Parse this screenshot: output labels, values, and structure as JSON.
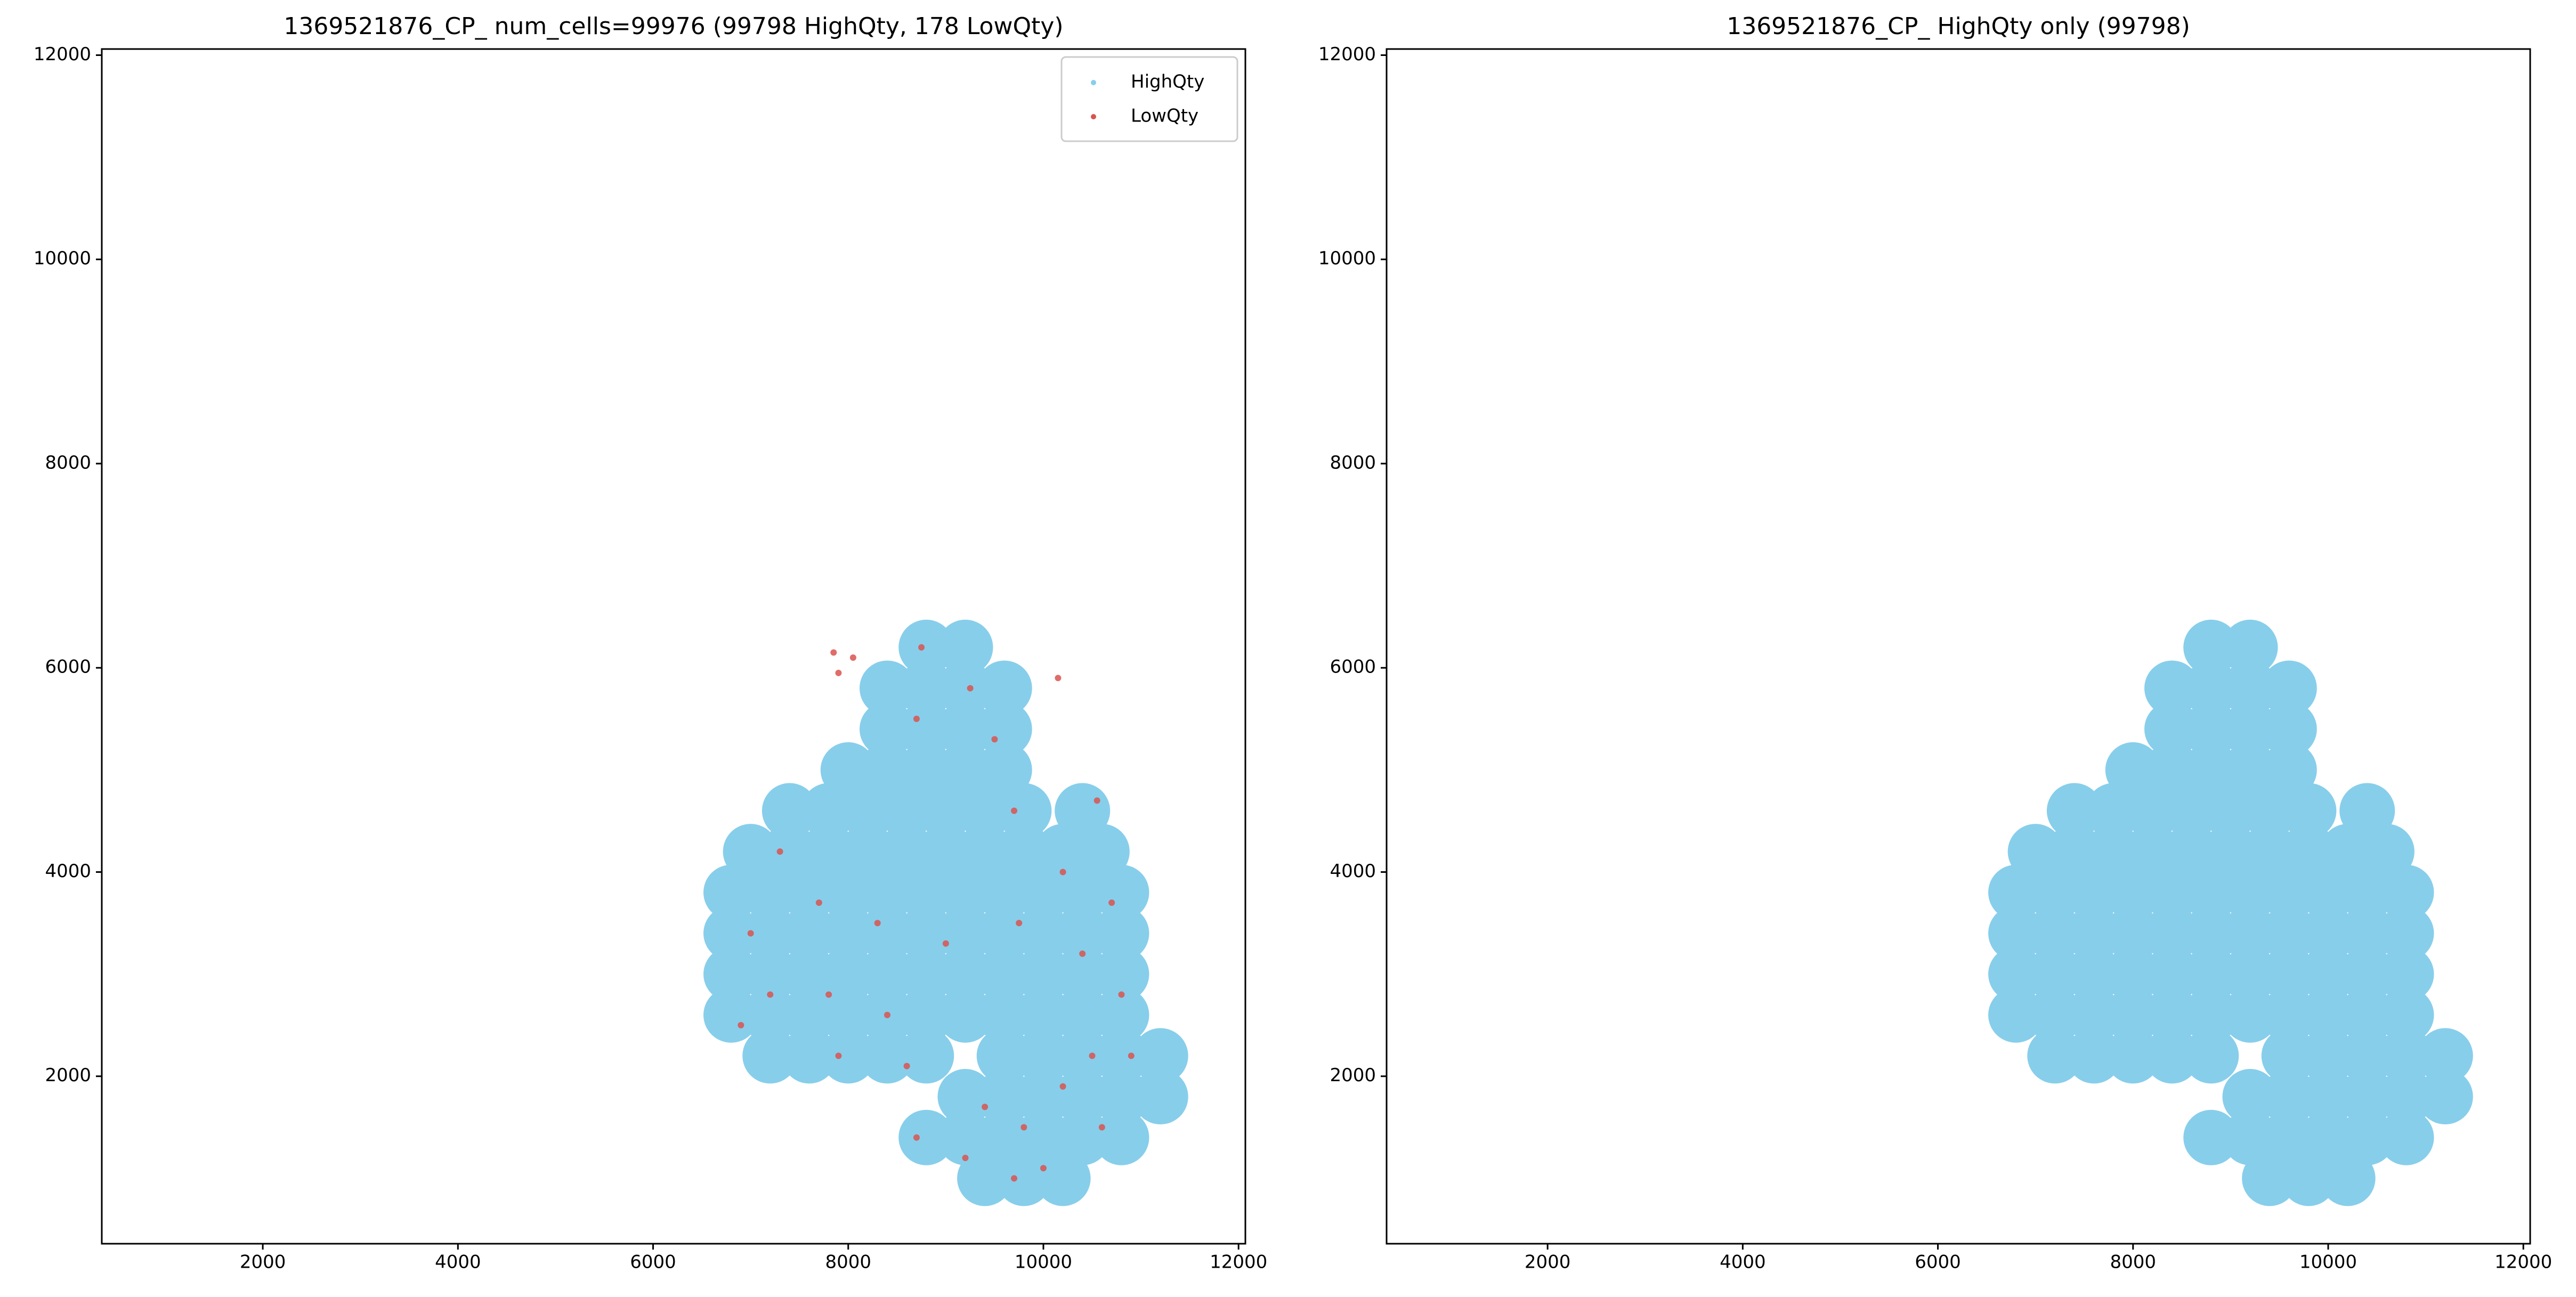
{
  "chart_data": [
    {
      "type": "scatter",
      "title": "1369521876_CP_ num_cells=99976 (99798 HighQty, 178 LowQty)",
      "xlim": [
        350,
        12070
      ],
      "ylim": [
        360,
        12060
      ],
      "xticks": [
        2000,
        4000,
        6000,
        8000,
        10000,
        12000
      ],
      "yticks": [
        2000,
        4000,
        6000,
        8000,
        10000,
        12000
      ],
      "legend": "upper right",
      "series": [
        {
          "name": "HighQty",
          "color": "#87ceeb",
          "x": [
            9400,
            9800,
            10200,
            8800,
            9200,
            9600,
            10000,
            10400,
            10800,
            9200,
            9600,
            10000,
            10400,
            10800,
            11200,
            7200,
            7600,
            8000,
            8400,
            8800,
            9600,
            10000,
            10400,
            10800,
            11200,
            6800,
            7200,
            7600,
            8000,
            8400,
            8800,
            9200,
            9600,
            10000,
            10400,
            10800,
            6800,
            7200,
            7600,
            8000,
            8400,
            8800,
            9200,
            9600,
            10000,
            10400,
            10800,
            6800,
            7200,
            7600,
            8000,
            8400,
            8800,
            9200,
            9600,
            10000,
            10400,
            10800,
            6800,
            7200,
            7600,
            8000,
            8400,
            8800,
            9200,
            9600,
            10000,
            10400,
            10800,
            7000,
            7400,
            7800,
            8200,
            8600,
            9000,
            9400,
            9800,
            10200,
            10600,
            7400,
            7800,
            8200,
            8600,
            9000,
            9400,
            9800,
            10400,
            8000,
            8400,
            8800,
            9200,
            9600,
            8400,
            8800,
            9200,
            9600,
            8400,
            8800,
            9200,
            9600,
            8800,
            9200
          ],
          "values": [
            1000,
            1000,
            1000,
            1400,
            1400,
            1400,
            1400,
            1400,
            1400,
            1800,
            1800,
            1800,
            1800,
            1800,
            1800,
            2200,
            2200,
            2200,
            2200,
            2200,
            2200,
            2200,
            2200,
            2200,
            2200,
            2600,
            2600,
            2600,
            2600,
            2600,
            2600,
            2600,
            2600,
            2600,
            2600,
            2600,
            3000,
            3000,
            3000,
            3000,
            3000,
            3000,
            3000,
            3000,
            3000,
            3000,
            3000,
            3400,
            3400,
            3400,
            3400,
            3400,
            3400,
            3400,
            3400,
            3400,
            3400,
            3400,
            3800,
            3800,
            3800,
            3800,
            3800,
            3800,
            3800,
            3800,
            3800,
            3800,
            3800,
            4200,
            4200,
            4200,
            4200,
            4200,
            4200,
            4200,
            4200,
            4200,
            4200,
            4600,
            4600,
            4600,
            4600,
            4600,
            4600,
            4600,
            4600,
            5000,
            5000,
            5000,
            5000,
            5000,
            5400,
            5400,
            5400,
            5400,
            5800,
            5800,
            5800,
            5800,
            6200,
            6200
          ]
        },
        {
          "name": "LowQty",
          "color": "#d9534f",
          "x": [
            7850,
            7900,
            8050,
            8750,
            9500,
            8700,
            9250,
            10150,
            9700,
            10550,
            7300,
            7700,
            7000,
            8300,
            9000,
            9750,
            10400,
            10200,
            10700,
            7200,
            7800,
            8400,
            7900,
            8600,
            9400,
            9800,
            10200,
            10500,
            10800,
            8700,
            9200,
            9700,
            10000,
            10900,
            6900,
            10600
          ],
          "values": [
            6150,
            5950,
            6100,
            6200,
            5300,
            5500,
            5800,
            5900,
            4600,
            4700,
            4200,
            3700,
            3400,
            3500,
            3300,
            3500,
            3200,
            4000,
            3700,
            2800,
            2800,
            2600,
            2200,
            2100,
            1700,
            1500,
            1900,
            2200,
            2800,
            1400,
            1200,
            1000,
            1100,
            2200,
            2500,
            1500
          ]
        }
      ]
    },
    {
      "type": "scatter",
      "title": "1369521876_CP_ HighQty only (99798)",
      "xlim": [
        350,
        12070
      ],
      "ylim": [
        360,
        12060
      ],
      "xticks": [
        2000,
        4000,
        6000,
        8000,
        10000,
        12000
      ],
      "yticks": [
        2000,
        4000,
        6000,
        8000,
        10000,
        12000
      ],
      "series": [
        {
          "name": "HighQty",
          "color": "#87ceeb",
          "x": [
            9400,
            9800,
            10200,
            8800,
            9200,
            9600,
            10000,
            10400,
            10800,
            9200,
            9600,
            10000,
            10400,
            10800,
            11200,
            7200,
            7600,
            8000,
            8400,
            8800,
            9600,
            10000,
            10400,
            10800,
            11200,
            6800,
            7200,
            7600,
            8000,
            8400,
            8800,
            9200,
            9600,
            10000,
            10400,
            10800,
            6800,
            7200,
            7600,
            8000,
            8400,
            8800,
            9200,
            9600,
            10000,
            10400,
            10800,
            6800,
            7200,
            7600,
            8000,
            8400,
            8800,
            9200,
            9600,
            10000,
            10400,
            10800,
            6800,
            7200,
            7600,
            8000,
            8400,
            8800,
            9200,
            9600,
            10000,
            10400,
            10800,
            7000,
            7400,
            7800,
            8200,
            8600,
            9000,
            9400,
            9800,
            10200,
            10600,
            7400,
            7800,
            8200,
            8600,
            9000,
            9400,
            9800,
            10400,
            8000,
            8400,
            8800,
            9200,
            9600,
            8400,
            8800,
            9200,
            9600,
            8400,
            8800,
            9200,
            9600,
            8800,
            9200
          ],
          "values": [
            1000,
            1000,
            1000,
            1400,
            1400,
            1400,
            1400,
            1400,
            1400,
            1800,
            1800,
            1800,
            1800,
            1800,
            1800,
            2200,
            2200,
            2200,
            2200,
            2200,
            2200,
            2200,
            2200,
            2200,
            2200,
            2600,
            2600,
            2600,
            2600,
            2600,
            2600,
            2600,
            2600,
            2600,
            2600,
            2600,
            3000,
            3000,
            3000,
            3000,
            3000,
            3000,
            3000,
            3000,
            3000,
            3000,
            3000,
            3400,
            3400,
            3400,
            3400,
            3400,
            3400,
            3400,
            3400,
            3400,
            3400,
            3400,
            3800,
            3800,
            3800,
            3800,
            3800,
            3800,
            3800,
            3800,
            3800,
            3800,
            3800,
            4200,
            4200,
            4200,
            4200,
            4200,
            4200,
            4200,
            4200,
            4200,
            4200,
            4600,
            4600,
            4600,
            4600,
            4600,
            4600,
            4600,
            4600,
            5000,
            5000,
            5000,
            5000,
            5000,
            5400,
            5400,
            5400,
            5400,
            5800,
            5800,
            5800,
            5800,
            6200,
            6200
          ]
        }
      ]
    }
  ]
}
